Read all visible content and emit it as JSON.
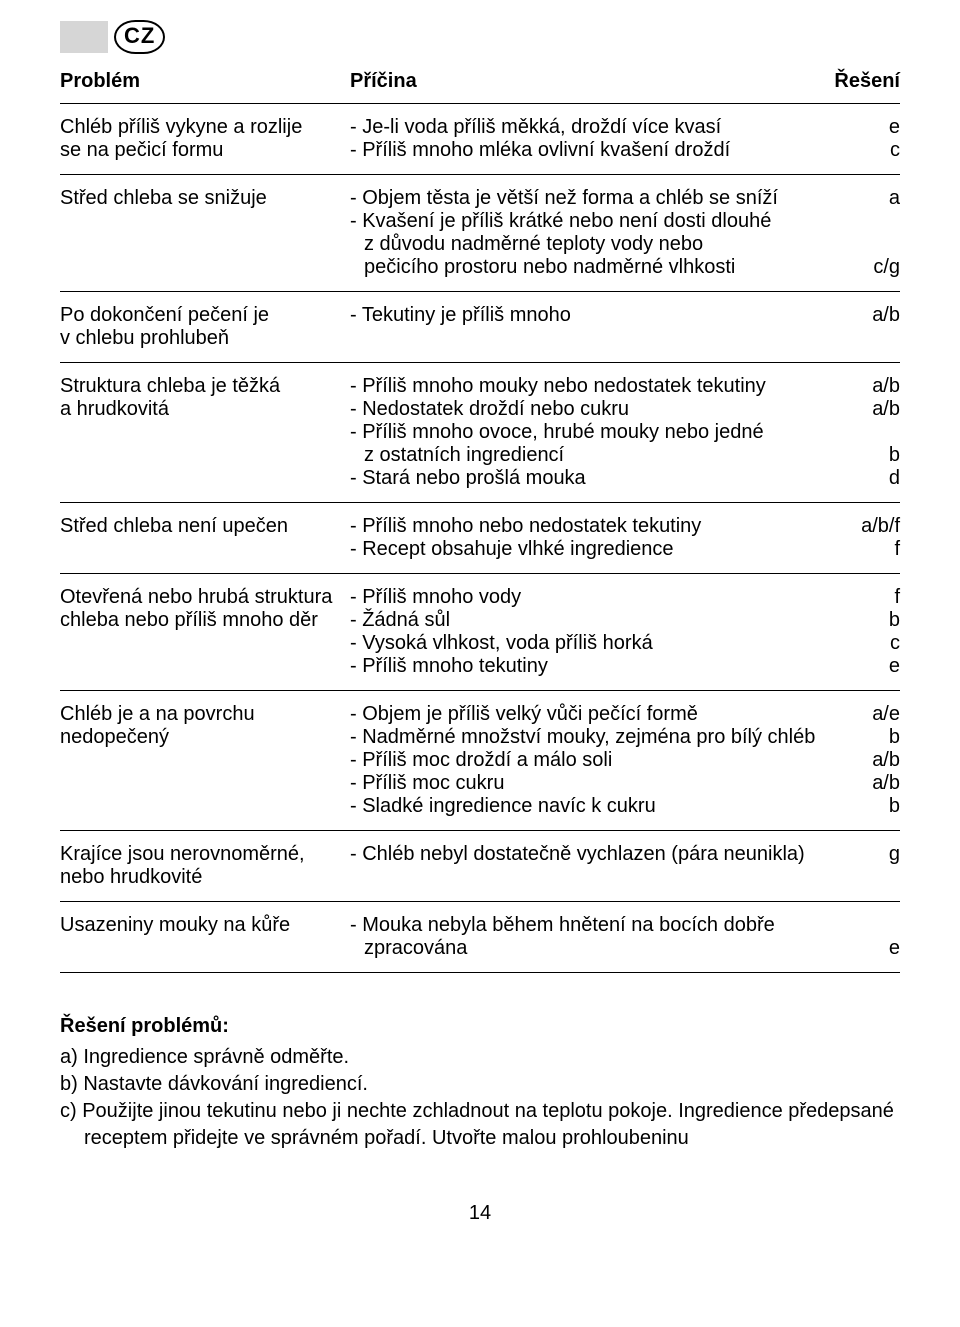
{
  "badge": "CZ",
  "headers": {
    "problem": "Problém",
    "cause": "Příčina",
    "solution": "Řešení"
  },
  "rows": [
    {
      "problem": [
        "Chléb příliš vykyne a rozlije",
        "se na pečicí formu"
      ],
      "causes": [
        {
          "text": "- Je-li voda příliš měkká, droždí více kvasí",
          "sol": "e"
        },
        {
          "text": "- Příliš mnoho mléka ovlivní kvašení droždí",
          "sol": "c"
        }
      ]
    },
    {
      "problem": [
        "Střed chleba se snižuje"
      ],
      "causes": [
        {
          "text": "- Objem těsta je větší než forma a chléb se sníží",
          "sol": "a"
        },
        {
          "text": "- Kvašení je příliš krátké nebo není dosti dlouhé",
          "sol": ""
        },
        {
          "text": "z důvodu nadměrné teploty vody nebo",
          "sol": "",
          "indent": true
        },
        {
          "text": "pečicího prostoru nebo nadměrné vlhkosti",
          "sol": "c/g",
          "indent": true
        }
      ]
    },
    {
      "problem": [
        "Po dokončení pečení je",
        "v chlebu prohlubeň"
      ],
      "causes": [
        {
          "text": "- Tekutiny je příliš mnoho",
          "sol": "a/b"
        }
      ]
    },
    {
      "problem": [
        "Struktura chleba je těžká",
        "a hrudkovitá"
      ],
      "causes": [
        {
          "text": "- Příliš mnoho mouky nebo nedostatek tekutiny",
          "sol": "a/b"
        },
        {
          "text": "- Nedostatek droždí nebo cukru",
          "sol": "a/b"
        },
        {
          "text": "- Příliš mnoho ovoce, hrubé mouky nebo jedné",
          "sol": ""
        },
        {
          "text": "z ostatních ingrediencí",
          "sol": "b",
          "indent": true
        },
        {
          "text": "- Stará nebo prošlá mouka",
          "sol": "d"
        }
      ]
    },
    {
      "problem": [
        "Střed chleba není upečen"
      ],
      "causes": [
        {
          "text": "- Příliš mnoho nebo nedostatek tekutiny",
          "sol": "a/b/f"
        },
        {
          "text": "- Recept obsahuje vlhké ingredience",
          "sol": "f"
        }
      ]
    },
    {
      "problem": [
        "Otevřená nebo hrubá struktura",
        "chleba nebo příliš mnoho děr"
      ],
      "causes": [
        {
          "text": "- Příliš mnoho vody",
          "sol": "f"
        },
        {
          "text": "- Žádná sůl",
          "sol": "b"
        },
        {
          "text": "- Vysoká vlhkost, voda příliš horká",
          "sol": "c"
        },
        {
          "text": "- Příliš mnoho tekutiny",
          "sol": "e"
        }
      ]
    },
    {
      "problem": [
        "Chléb je a na povrchu",
        "nedopečený"
      ],
      "causes": [
        {
          "text": "- Objem je příliš velký vůči pečící formě",
          "sol": "a/e"
        },
        {
          "text": "- Nadměrné množství mouky, zejména pro bílý chléb",
          "sol": "b"
        },
        {
          "text": "- Příliš moc droždí a málo soli",
          "sol": "a/b"
        },
        {
          "text": "- Příliš moc cukru",
          "sol": "a/b"
        },
        {
          "text": "- Sladké ingredience navíc k cukru",
          "sol": "b"
        }
      ]
    },
    {
      "problem": [
        "Krajíce jsou nerovnoměrné,",
        "nebo hrudkovité"
      ],
      "causes": [
        {
          "text": "- Chléb nebyl dostatečně vychlazen (pára neunikla)",
          "sol": "g"
        }
      ]
    },
    {
      "problem": [
        "Usazeniny mouky na kůře"
      ],
      "causes": [
        {
          "text": "- Mouka nebyla během hnětení na bocích dobře",
          "sol": ""
        },
        {
          "text": "zpracována",
          "sol": "e",
          "indent": true
        }
      ]
    }
  ],
  "solutions": {
    "title": "Řešení problémů:",
    "items": [
      "a) Ingredience správně odměřte.",
      "b) Nastavte dávkování ingrediencí.",
      "c) Použijte jinou tekutinu nebo ji nechte zchladnout na teplotu pokoje. Ingredience předepsané receptem přidejte ve správném pořadí. Utvořte malou prohloubeninu"
    ]
  },
  "page_number": "14",
  "colors": {
    "background": "#ffffff",
    "text": "#000000",
    "grey": "#d6d6d6"
  },
  "typography": {
    "base_fontsize": 20,
    "header_weight": 700
  }
}
